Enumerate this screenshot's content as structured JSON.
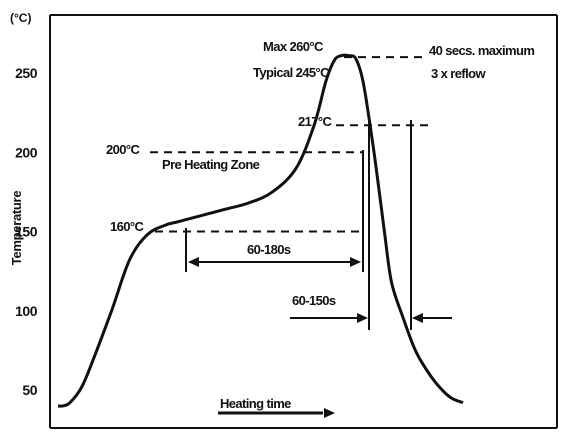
{
  "chart_data": {
    "type": "line",
    "title": "",
    "xlabel": "Heating time",
    "ylabel": "Temperature",
    "y_unit": "(°C)",
    "yticks": [
      250,
      200,
      150,
      100,
      50
    ],
    "ylim": [
      32,
      275
    ],
    "axis_color": "#111111",
    "line_color": "#111111",
    "x": [
      0,
      4,
      10,
      20,
      30,
      45,
      60,
      75,
      90,
      100,
      110,
      125,
      140,
      160,
      180,
      200,
      215,
      225,
      232,
      238,
      244,
      250,
      256,
      262,
      268,
      274,
      280,
      290,
      300,
      310,
      320,
      330,
      340
    ],
    "y": [
      40,
      40,
      42,
      52,
      70,
      100,
      132,
      148,
      154,
      156,
      158,
      161,
      164,
      168,
      175,
      190,
      217,
      245,
      258,
      261,
      261,
      259,
      245,
      217,
      185,
      150,
      118,
      95,
      75,
      62,
      52,
      45,
      42
    ],
    "annotations": {
      "max": "Max 260°C",
      "typical": "Typical 245°C",
      "max_time": "40 secs. maximum",
      "reflow": "3 x reflow",
      "t217": "217°C",
      "t200": "200°C",
      "preheat_zone": "Pre Heating Zone",
      "t160": "160°C",
      "preheat_time": "60-180s",
      "liquidus_time": "60-150s"
    }
  }
}
